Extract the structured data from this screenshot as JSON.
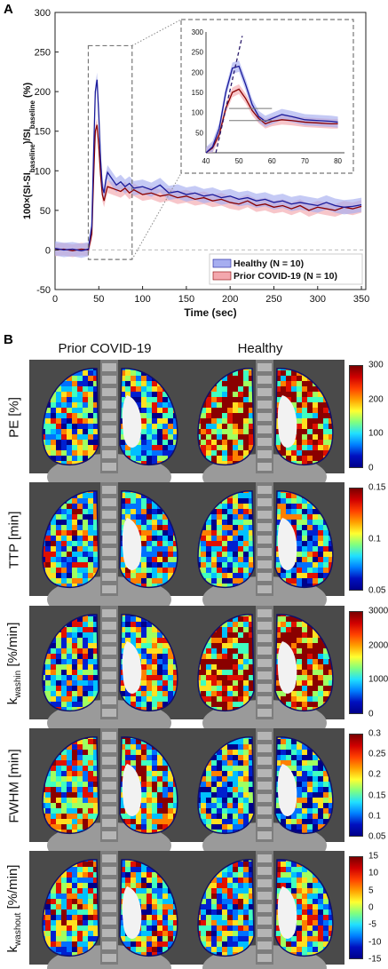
{
  "panel_a": {
    "letter": "A"
  },
  "panel_b": {
    "letter": "B",
    "columns": [
      "Prior COVID-19",
      "Healthy"
    ]
  },
  "chart_data": [
    {
      "type": "line",
      "title": "",
      "xlabel": "Time (sec)",
      "ylabel": "100×(SI-SI_baseline)/SI_baseline (%)",
      "ylabel_parts": [
        "100",
        "×",
        "(SI-SI",
        "baseline",
        ")/SI",
        "baseline",
        " (%)"
      ],
      "xlim": [
        0,
        355
      ],
      "ylim": [
        -50,
        300
      ],
      "xticks": [
        0,
        50,
        100,
        150,
        200,
        250,
        300,
        350
      ],
      "yticks": [
        -50,
        0,
        50,
        100,
        150,
        200,
        250,
        300
      ],
      "legend_position": "bottom-right",
      "x": [
        0,
        10,
        20,
        30,
        38,
        42,
        44,
        46,
        48,
        50,
        52,
        54,
        56,
        58,
        60,
        65,
        70,
        75,
        80,
        85,
        90,
        100,
        110,
        120,
        130,
        140,
        150,
        160,
        170,
        180,
        190,
        200,
        210,
        220,
        230,
        240,
        250,
        260,
        270,
        280,
        290,
        300,
        310,
        320,
        330,
        340,
        350
      ],
      "series": [
        {
          "name": "Healthy (N = 10)",
          "color": "#1a1a9a",
          "band_color": "#a6aef0",
          "values": [
            2,
            0,
            1,
            -1,
            1,
            30,
            120,
            200,
            215,
            170,
            115,
            80,
            72,
            88,
            98,
            90,
            82,
            86,
            80,
            84,
            78,
            80,
            76,
            82,
            72,
            74,
            70,
            72,
            68,
            70,
            66,
            68,
            64,
            66,
            62,
            64,
            60,
            62,
            58,
            60,
            58,
            56,
            60,
            56,
            54,
            55,
            57
          ],
          "band": 9
        },
        {
          "name": "Prior COVID-19 (N = 10)",
          "color": "#8a0000",
          "band_color": "#f3a7ad",
          "values": [
            0,
            1,
            -1,
            1,
            0,
            20,
            90,
            150,
            158,
            130,
            95,
            70,
            62,
            72,
            80,
            78,
            76,
            74,
            78,
            72,
            76,
            70,
            72,
            68,
            70,
            66,
            68,
            64,
            66,
            62,
            64,
            60,
            58,
            62,
            56,
            58,
            54,
            56,
            52,
            56,
            50,
            54,
            52,
            50,
            54,
            52,
            55
          ],
          "band": 8
        }
      ],
      "reference_line": {
        "y": 0,
        "style": "dashed"
      }
    },
    {
      "type": "line",
      "title": "",
      "xlim": [
        40,
        82
      ],
      "ylim": [
        0,
        300
      ],
      "xticks": [
        40,
        50,
        60,
        70,
        80
      ],
      "yticks": [
        50,
        100,
        150,
        200,
        250,
        300
      ],
      "x": [
        40,
        42,
        44,
        46,
        48,
        50,
        52,
        54,
        56,
        58,
        60,
        63,
        66,
        70,
        74,
        78,
        80
      ],
      "series": [
        {
          "name": "Healthy (N = 10)",
          "color": "#1a1a9a",
          "band_color": "#a6aef0",
          "values": [
            0,
            15,
            60,
            150,
            210,
            215,
            170,
            120,
            90,
            78,
            85,
            95,
            90,
            82,
            80,
            78,
            76
          ],
          "band": 14
        },
        {
          "name": "Prior COVID-19 (N = 10)",
          "color": "#8a0000",
          "band_color": "#f3a7ad",
          "values": [
            0,
            12,
            45,
            110,
            150,
            158,
            135,
            105,
            85,
            72,
            78,
            82,
            80,
            76,
            74,
            72,
            72
          ],
          "band": 12
        }
      ],
      "annotations": {
        "dashed_slope_line": true,
        "reference_levels": [
          80,
          110
        ]
      }
    }
  ],
  "maps": [
    {
      "label": "PE [%]",
      "label_sub": "",
      "ticks": [
        "300",
        "200",
        "100",
        "0"
      ]
    },
    {
      "label": "TTP [min]",
      "label_sub": "",
      "ticks": [
        "0.15",
        "0.1",
        "0.05"
      ]
    },
    {
      "label": "k",
      "label_sub": "washin",
      "label_suffix": " [%/min]",
      "ticks": [
        "3000",
        "2000",
        "1000",
        "0"
      ]
    },
    {
      "label": "FWHM [min]",
      "label_sub": "",
      "ticks": [
        "0.3",
        "0.25",
        "0.2",
        "0.15",
        "0.1",
        "0.05"
      ]
    },
    {
      "label": "k",
      "label_sub": "washout",
      "label_suffix": " [%/min]",
      "ticks": [
        "15",
        "10",
        "5",
        "0",
        "-5",
        "-10",
        "-15"
      ]
    }
  ]
}
